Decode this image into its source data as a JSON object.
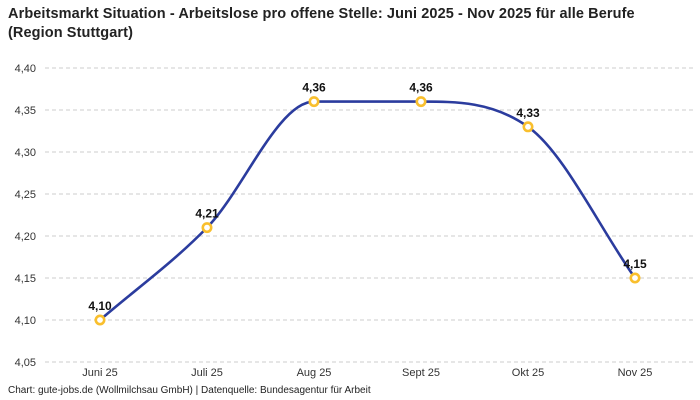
{
  "chart_data": {
    "type": "line",
    "title": "Arbeitsmarkt Situation - Arbeitslose pro offene Stelle: Juni 2025 - Nov 2025 für alle Berufe (Region Stuttgart)",
    "categories": [
      "Juni 25",
      "Juli 25",
      "Aug 25",
      "Sept 25",
      "Okt 25",
      "Nov 25"
    ],
    "values": [
      4.1,
      4.21,
      4.36,
      4.36,
      4.33,
      4.15
    ],
    "value_labels": [
      "4,10",
      "4,21",
      "4,36",
      "4,36",
      "4,33",
      "4,15"
    ],
    "ylim": [
      4.05,
      4.4
    ],
    "y_ticks": [
      4.05,
      4.1,
      4.15,
      4.2,
      4.25,
      4.3,
      4.35,
      4.4
    ],
    "y_tick_labels": [
      "4,05",
      "4,10",
      "4,15",
      "4,20",
      "4,25",
      "4,30",
      "4,35",
      "4,40"
    ],
    "xlabel": "",
    "ylabel": "",
    "legend": "none",
    "grid": "horizontal-dashed",
    "curve": "monotone",
    "colors": {
      "line": "#2b3c9e",
      "marker_ring": "#f9bf2d",
      "marker_fill": "#ffffff",
      "grid": "#cccccc",
      "tick_text": "#333333",
      "data_label_text": "#111111",
      "title_text": "#222222"
    }
  },
  "footer": {
    "text": "Chart: gute-jobs.de (Wollmilchsau GmbH) | Datenquelle: Bundesagentur für Arbeit"
  }
}
